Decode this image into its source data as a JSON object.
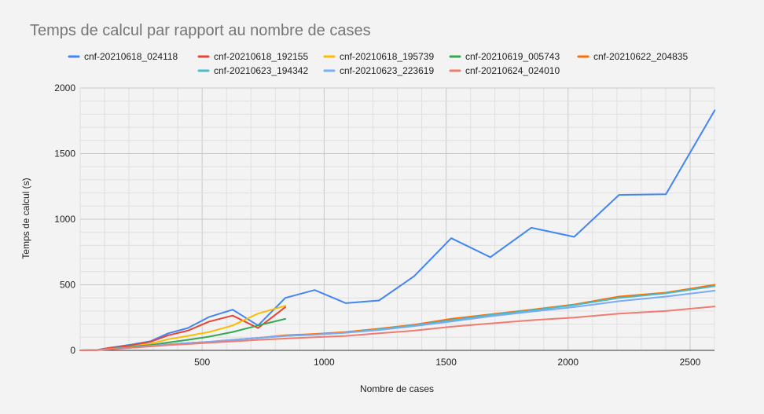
{
  "chart_data": {
    "type": "line",
    "title": "Temps de calcul par rapport au nombre de cases",
    "xlabel": "Nombre de cases",
    "ylabel": "Temps de calcul (s)",
    "xlim": [
      0,
      2600
    ],
    "ylim": [
      0,
      2000
    ],
    "x_ticks": [
      500,
      1000,
      1500,
      2000,
      2500
    ],
    "y_ticks": [
      0,
      500,
      1000,
      1500,
      2000
    ],
    "x_minor_step": 100,
    "y_minor_step": 100,
    "grid": true,
    "legend_position": "top",
    "series": [
      {
        "name": "cnf-20210618_024118",
        "color": "#4285f4",
        "x": [
          0,
          64,
          121,
          196,
          289,
          361,
          441,
          529,
          625,
          729,
          841,
          961,
          1089,
          1225,
          1369,
          1521,
          1681,
          1849,
          2025,
          2209,
          2401,
          2601
        ],
        "y": [
          0,
          1,
          20,
          40,
          70,
          130,
          170,
          255,
          310,
          190,
          400,
          460,
          360,
          380,
          565,
          855,
          710,
          935,
          865,
          1185,
          1190,
          1830
        ]
      },
      {
        "name": "cnf-20210618_192155",
        "color": "#ea4335",
        "x": [
          0,
          64,
          121,
          196,
          289,
          361,
          441,
          529,
          625,
          729,
          841
        ],
        "y": [
          0,
          1,
          20,
          35,
          65,
          115,
          150,
          220,
          265,
          170,
          330
        ]
      },
      {
        "name": "cnf-20210618_195739",
        "color": "#fbbc04",
        "x": [
          0,
          64,
          121,
          196,
          289,
          361,
          441,
          529,
          625,
          729,
          841
        ],
        "y": [
          0,
          1,
          10,
          25,
          50,
          85,
          110,
          140,
          190,
          280,
          340
        ]
      },
      {
        "name": "cnf-20210619_005743",
        "color": "#34a853",
        "x": [
          0,
          64,
          121,
          196,
          289,
          361,
          441,
          529,
          625,
          729,
          841
        ],
        "y": [
          0,
          1,
          10,
          25,
          40,
          60,
          80,
          105,
          140,
          190,
          240
        ]
      },
      {
        "name": "cnf-20210622_204835",
        "color": "#ff6d01",
        "x": [
          0,
          64,
          121,
          196,
          289,
          361,
          441,
          529,
          625,
          729,
          841,
          961,
          1089,
          1225,
          1369,
          1521,
          1681,
          1849,
          2025,
          2209,
          2401,
          2601
        ],
        "y": [
          0,
          1,
          10,
          20,
          35,
          45,
          55,
          65,
          80,
          95,
          115,
          125,
          140,
          165,
          195,
          240,
          275,
          310,
          350,
          410,
          440,
          500
        ]
      },
      {
        "name": "cnf-20210623_194342",
        "color": "#46bdc6",
        "x": [
          0,
          64,
          121,
          196,
          289,
          361,
          441,
          529,
          625,
          729,
          841,
          961,
          1089,
          1225,
          1369,
          1521,
          1681,
          1849,
          2025,
          2209,
          2401,
          2601
        ],
        "y": [
          0,
          1,
          10,
          20,
          35,
          45,
          55,
          65,
          80,
          95,
          110,
          120,
          135,
          160,
          190,
          230,
          270,
          305,
          345,
          400,
          435,
          490
        ]
      },
      {
        "name": "cnf-20210623_223619",
        "color": "#7baaf7",
        "x": [
          0,
          64,
          121,
          196,
          289,
          361,
          441,
          529,
          625,
          729,
          841,
          961,
          1089,
          1225,
          1369,
          1521,
          1681,
          1849,
          2025,
          2209,
          2401,
          2601
        ],
        "y": [
          0,
          1,
          10,
          20,
          35,
          45,
          55,
          65,
          80,
          95,
          110,
          120,
          135,
          155,
          185,
          220,
          260,
          295,
          330,
          375,
          410,
          455
        ]
      },
      {
        "name": "cnf-20210624_024010",
        "color": "#f07b72",
        "x": [
          0,
          64,
          121,
          196,
          289,
          361,
          441,
          529,
          625,
          729,
          841,
          961,
          1089,
          1225,
          1369,
          1521,
          1681,
          1849,
          2025,
          2209,
          2401,
          2601
        ],
        "y": [
          0,
          1,
          8,
          18,
          30,
          40,
          48,
          58,
          68,
          80,
          90,
          100,
          110,
          130,
          150,
          180,
          205,
          230,
          250,
          280,
          300,
          335
        ]
      }
    ]
  }
}
